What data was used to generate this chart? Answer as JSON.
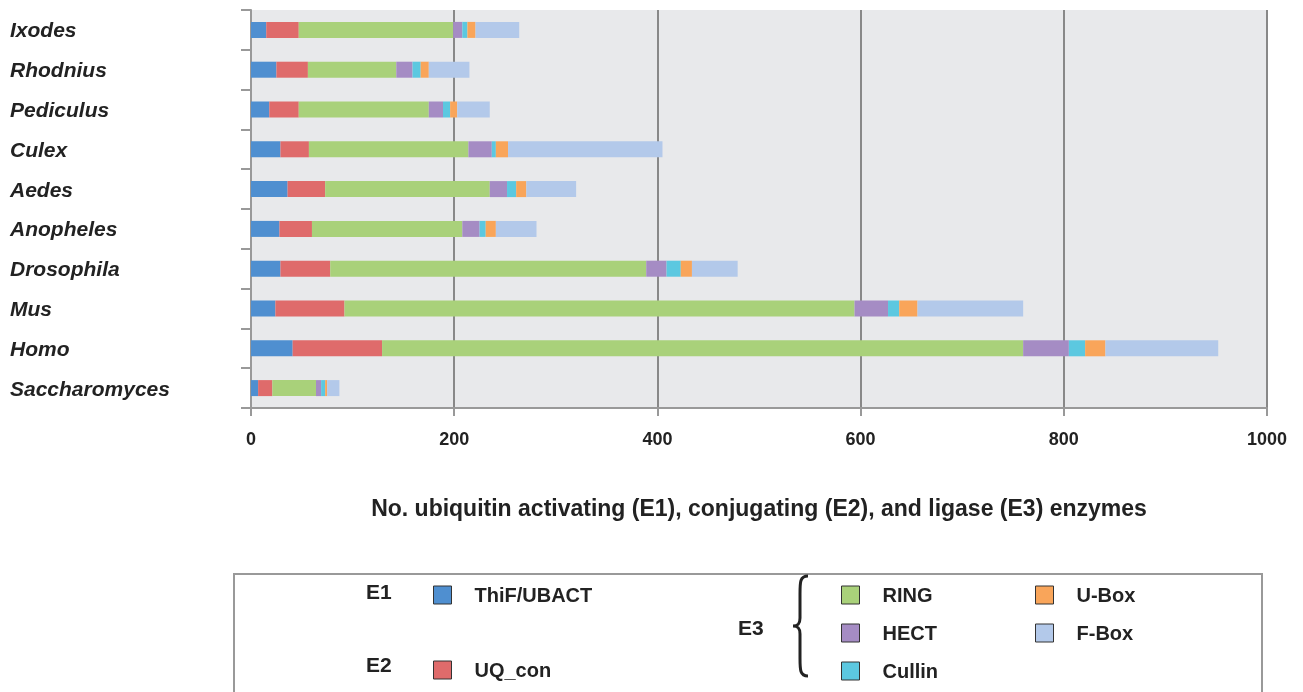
{
  "chart_data": {
    "type": "bar",
    "orientation": "horizontal",
    "stacked": true,
    "xlabel": "No. ubiquitin activating (E1), conjugating (E2), and ligase (E3) enzymes",
    "categories": [
      "Ixodes",
      "Rhodnius",
      "Pediculus",
      "Culex",
      "Aedes",
      "Anopheles",
      "Drosophila",
      "Mus",
      "Homo",
      "Saccharomyces"
    ],
    "series": [
      {
        "name": "ThiF/UBACT",
        "color": "#4f8fd0",
        "values": [
          15,
          25,
          18,
          29,
          36,
          28,
          29,
          24,
          41,
          7
        ]
      },
      {
        "name": "UQ_con",
        "color": "#df6b6b",
        "values": [
          32,
          31,
          29,
          28,
          37,
          32,
          49,
          68,
          88,
          14
        ]
      },
      {
        "name": "RING",
        "color": "#a9d17a",
        "values": [
          152,
          87,
          128,
          157,
          162,
          148,
          311,
          502,
          631,
          43
        ]
      },
      {
        "name": "HECT",
        "color": "#a58cc4",
        "values": [
          9,
          16,
          14,
          23,
          17,
          17,
          20,
          33,
          45,
          5
        ]
      },
      {
        "name": "Cullin",
        "color": "#5cc8e0",
        "values": [
          5,
          8,
          7,
          4,
          9,
          6,
          14,
          11,
          16,
          4
        ]
      },
      {
        "name": "U-Box",
        "color": "#f9a55a",
        "values": [
          8,
          8,
          7,
          12,
          10,
          10,
          11,
          18,
          20,
          2
        ]
      },
      {
        "name": "F-Box",
        "color": "#b3c9ea",
        "values": [
          43,
          40,
          32,
          152,
          49,
          40,
          45,
          104,
          111,
          12
        ]
      }
    ],
    "xlim": [
      0,
      1000
    ],
    "xticks": [
      0,
      200,
      400,
      600,
      800,
      1000
    ],
    "grid": "x",
    "legend": "bottom",
    "annotations": [
      "E1",
      "E2",
      "E3"
    ]
  }
}
